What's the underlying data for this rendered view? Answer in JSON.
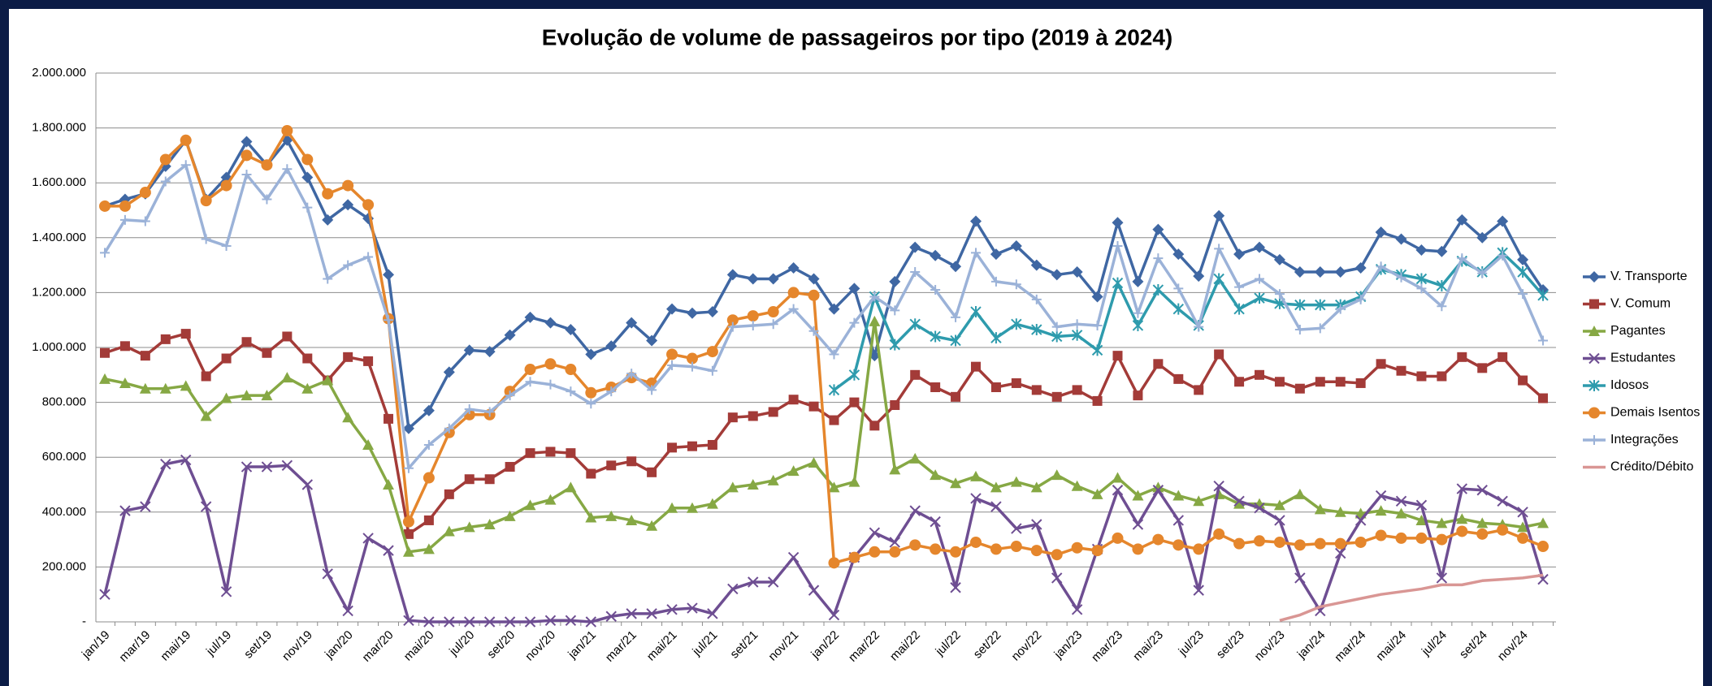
{
  "chart_data": {
    "type": "line",
    "title": "Evolução de volume de passageiros por tipo (2019 à 2024)",
    "categories": [
      "jan/19",
      null,
      "mar/19",
      null,
      "mai/19",
      null,
      "jul/19",
      null,
      "set/19",
      null,
      "nov/19",
      null,
      "jan/20",
      null,
      "mar/20",
      null,
      "mai/20",
      null,
      "jul/20",
      null,
      "set/20",
      null,
      "nov/20",
      null,
      "jan/21",
      null,
      "mar/21",
      null,
      "mai/21",
      null,
      "jul/21",
      null,
      "set/21",
      null,
      "nov/21",
      null,
      "jan/22",
      null,
      "mar/22",
      null,
      "mai/22",
      null,
      "jul/22",
      null,
      "set/22",
      null,
      "nov/22",
      null,
      "jan/23",
      null,
      "mar/23",
      null,
      "mai/23",
      null,
      "jul/23",
      null,
      "set/23",
      null,
      "nov/23",
      null,
      "jan/24",
      null,
      "mar/24",
      null,
      "mai/24",
      null,
      "jul/24",
      null,
      "set/24",
      null,
      "nov/24",
      null
    ],
    "ylim": [
      0,
      2000000
    ],
    "yticks": [
      {
        "value": 0,
        "label": "-"
      },
      {
        "value": 200000,
        "label": "200.000"
      },
      {
        "value": 400000,
        "label": "400.000"
      },
      {
        "value": 600000,
        "label": "600.000"
      },
      {
        "value": 800000,
        "label": "800.000"
      },
      {
        "value": 1000000,
        "label": "1.000.000"
      },
      {
        "value": 1200000,
        "label": "1.200.000"
      },
      {
        "value": 1400000,
        "label": "1.400.000"
      },
      {
        "value": 1600000,
        "label": "1.600.000"
      },
      {
        "value": 1800000,
        "label": "1.800.000"
      },
      {
        "value": 2000000,
        "label": "2.000.000"
      }
    ],
    "grid": true,
    "legend": "right",
    "series": [
      {
        "name": "V. Transporte",
        "color": "#3f67a3",
        "marker": "diamond",
        "values": [
          1515000,
          1540000,
          1560000,
          1660000,
          1755000,
          1540000,
          1620000,
          1750000,
          1665000,
          1755000,
          1620000,
          1465000,
          1520000,
          1470000,
          1265000,
          705000,
          770000,
          910000,
          990000,
          985000,
          1045000,
          1110000,
          1090000,
          1065000,
          975000,
          1005000,
          1090000,
          1025000,
          1140000,
          1125000,
          1130000,
          1265000,
          1250000,
          1250000,
          1290000,
          1250000,
          1140000,
          1215000,
          970000,
          1240000,
          1365000,
          1335000,
          1295000,
          1460000,
          1340000,
          1370000,
          1300000,
          1265000,
          1275000,
          1185000,
          1455000,
          1240000,
          1430000,
          1340000,
          1260000,
          1480000,
          1340000,
          1365000,
          1320000,
          1275000,
          1275000,
          1275000,
          1290000,
          1420000,
          1395000,
          1355000,
          1350000,
          1465000,
          1400000,
          1460000,
          1320000,
          1210000
        ]
      },
      {
        "name": "V. Comum",
        "color": "#a33b38",
        "marker": "square",
        "values": [
          980000,
          1005000,
          970000,
          1030000,
          1050000,
          895000,
          960000,
          1020000,
          980000,
          1040000,
          960000,
          880000,
          965000,
          950000,
          740000,
          320000,
          370000,
          465000,
          520000,
          520000,
          565000,
          615000,
          620000,
          615000,
          540000,
          570000,
          585000,
          545000,
          635000,
          640000,
          645000,
          745000,
          750000,
          765000,
          810000,
          785000,
          735000,
          800000,
          715000,
          790000,
          900000,
          855000,
          820000,
          930000,
          855000,
          870000,
          845000,
          820000,
          845000,
          805000,
          970000,
          825000,
          940000,
          885000,
          845000,
          975000,
          875000,
          900000,
          875000,
          850000,
          875000,
          875000,
          870000,
          940000,
          915000,
          895000,
          895000,
          965000,
          925000,
          965000,
          880000,
          815000
        ]
      },
      {
        "name": "Pagantes",
        "color": "#86a844",
        "marker": "triangle",
        "values": [
          885000,
          870000,
          850000,
          850000,
          860000,
          750000,
          815000,
          825000,
          825000,
          890000,
          850000,
          880000,
          745000,
          645000,
          500000,
          255000,
          265000,
          330000,
          345000,
          355000,
          385000,
          425000,
          445000,
          490000,
          380000,
          385000,
          370000,
          350000,
          415000,
          415000,
          430000,
          490000,
          500000,
          515000,
          550000,
          580000,
          490000,
          510000,
          1095000,
          555000,
          595000,
          535000,
          505000,
          530000,
          490000,
          510000,
          490000,
          535000,
          495000,
          465000,
          525000,
          460000,
          490000,
          460000,
          440000,
          465000,
          430000,
          430000,
          425000,
          465000,
          410000,
          400000,
          395000,
          405000,
          395000,
          370000,
          360000,
          375000,
          360000,
          355000,
          345000,
          360000
        ]
      },
      {
        "name": "Estudantes",
        "color": "#6e4e92",
        "marker": "x",
        "values": [
          100000,
          405000,
          420000,
          575000,
          590000,
          420000,
          110000,
          565000,
          565000,
          570000,
          500000,
          175000,
          40000,
          305000,
          260000,
          5000,
          0,
          0,
          0,
          0,
          0,
          0,
          5000,
          5000,
          0,
          20000,
          30000,
          30000,
          45000,
          50000,
          30000,
          120000,
          145000,
          145000,
          235000,
          115000,
          25000,
          235000,
          325000,
          290000,
          405000,
          365000,
          125000,
          450000,
          420000,
          340000,
          355000,
          160000,
          45000,
          265000,
          480000,
          355000,
          480000,
          370000,
          115000,
          495000,
          440000,
          415000,
          370000,
          160000,
          40000,
          250000,
          370000,
          460000,
          440000,
          425000,
          160000,
          485000,
          480000,
          440000,
          400000,
          155000
        ]
      },
      {
        "name": "Idosos",
        "color": "#2e9bad",
        "marker": "asterisk",
        "values": [
          null,
          null,
          null,
          null,
          null,
          null,
          null,
          null,
          null,
          null,
          null,
          null,
          null,
          null,
          null,
          null,
          null,
          null,
          null,
          null,
          null,
          null,
          null,
          null,
          null,
          null,
          null,
          null,
          null,
          null,
          null,
          null,
          null,
          null,
          null,
          null,
          845000,
          900000,
          1185000,
          1010000,
          1085000,
          1040000,
          1025000,
          1130000,
          1035000,
          1085000,
          1065000,
          1040000,
          1045000,
          990000,
          1235000,
          1080000,
          1210000,
          1140000,
          1080000,
          1250000,
          1140000,
          1180000,
          1160000,
          1155000,
          1155000,
          1155000,
          1185000,
          1285000,
          1265000,
          1250000,
          1225000,
          1315000,
          1275000,
          1345000,
          1275000,
          1190000
        ]
      },
      {
        "name": "Demais Isentos",
        "color": "#e5862c",
        "marker": "circle",
        "values": [
          1515000,
          1515000,
          1565000,
          1685000,
          1755000,
          1535000,
          1590000,
          1700000,
          1665000,
          1790000,
          1685000,
          1560000,
          1590000,
          1520000,
          1105000,
          365000,
          525000,
          690000,
          755000,
          755000,
          840000,
          920000,
          940000,
          920000,
          835000,
          855000,
          890000,
          870000,
          975000,
          960000,
          985000,
          1100000,
          1115000,
          1130000,
          1200000,
          1190000,
          215000,
          235000,
          255000,
          255000,
          280000,
          265000,
          255000,
          290000,
          265000,
          275000,
          260000,
          245000,
          270000,
          260000,
          305000,
          265000,
          300000,
          280000,
          265000,
          320000,
          285000,
          295000,
          290000,
          280000,
          285000,
          285000,
          290000,
          315000,
          305000,
          305000,
          300000,
          330000,
          320000,
          335000,
          305000,
          275000
        ]
      },
      {
        "name": "Integrações",
        "color": "#9bb2d8",
        "marker": "plus",
        "values": [
          1345000,
          1465000,
          1460000,
          1605000,
          1665000,
          1395000,
          1370000,
          1630000,
          1540000,
          1650000,
          1510000,
          1250000,
          1300000,
          1330000,
          1100000,
          560000,
          645000,
          705000,
          775000,
          765000,
          825000,
          875000,
          865000,
          840000,
          795000,
          840000,
          905000,
          845000,
          935000,
          930000,
          915000,
          1075000,
          1080000,
          1085000,
          1140000,
          1060000,
          975000,
          1090000,
          1185000,
          1135000,
          1275000,
          1210000,
          1110000,
          1345000,
          1240000,
          1230000,
          1175000,
          1075000,
          1085000,
          1080000,
          1370000,
          1125000,
          1325000,
          1215000,
          1075000,
          1360000,
          1220000,
          1250000,
          1195000,
          1065000,
          1070000,
          1140000,
          1175000,
          1295000,
          1255000,
          1215000,
          1150000,
          1325000,
          1270000,
          1335000,
          1195000,
          1025000
        ]
      },
      {
        "name": "Crédito/Débito",
        "color": "#d99694",
        "marker": "none",
        "values": [
          null,
          null,
          null,
          null,
          null,
          null,
          null,
          null,
          null,
          null,
          null,
          null,
          null,
          null,
          null,
          null,
          null,
          null,
          null,
          null,
          null,
          null,
          null,
          null,
          null,
          null,
          null,
          null,
          null,
          null,
          null,
          null,
          null,
          null,
          null,
          null,
          null,
          null,
          null,
          null,
          null,
          null,
          null,
          null,
          null,
          null,
          null,
          null,
          null,
          null,
          null,
          null,
          null,
          null,
          null,
          null,
          null,
          null,
          5000,
          25000,
          55000,
          70000,
          85000,
          100000,
          110000,
          120000,
          135000,
          135000,
          150000,
          155000,
          160000,
          170000
        ]
      }
    ]
  }
}
